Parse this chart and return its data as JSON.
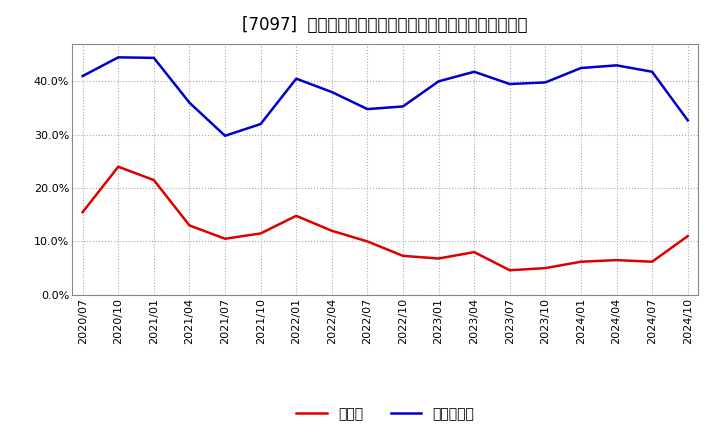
{
  "title": "[7097]  現預金、有利子負債の総資産に対する比率の推移",
  "x_labels": [
    "2020/07",
    "2020/10",
    "2021/01",
    "2021/04",
    "2021/07",
    "2021/10",
    "2022/01",
    "2022/04",
    "2022/07",
    "2022/10",
    "2023/01",
    "2023/04",
    "2023/07",
    "2023/10",
    "2024/01",
    "2024/04",
    "2024/07",
    "2024/10"
  ],
  "cash_values": [
    0.155,
    0.24,
    0.215,
    0.13,
    0.105,
    0.115,
    0.148,
    0.12,
    0.1,
    0.073,
    0.068,
    0.08,
    0.046,
    0.05,
    0.062,
    0.065,
    0.062,
    0.11
  ],
  "debt_values": [
    0.41,
    0.445,
    0.444,
    0.36,
    0.298,
    0.32,
    0.405,
    0.38,
    0.348,
    0.353,
    0.4,
    0.418,
    0.395,
    0.398,
    0.425,
    0.43,
    0.418,
    0.327
  ],
  "cash_color": "#dd0000",
  "debt_color": "#0000cc",
  "bg_color": "#ffffff",
  "plot_bg_color": "#ffffff",
  "grid_color": "#aaaaaa",
  "ylim": [
    0.0,
    0.47
  ],
  "yticks": [
    0.0,
    0.1,
    0.2,
    0.3,
    0.4
  ],
  "title_fontsize": 12,
  "tick_fontsize": 8,
  "legend_fontsize": 10,
  "line_width": 1.8,
  "legend_cash": "現預金",
  "legend_debt": "有利子負債"
}
